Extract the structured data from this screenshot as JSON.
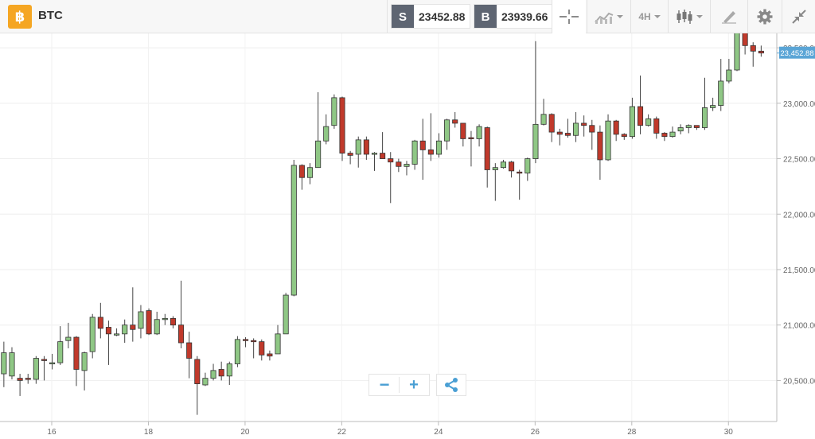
{
  "toolbar": {
    "logo_glyph": "฿",
    "symbol": "BTC",
    "sell": {
      "tag": "S",
      "price": "23452.88"
    },
    "buy": {
      "tag": "B",
      "price": "23939.66"
    },
    "interval": "4H",
    "icons": [
      "crosshair-icon",
      "line-chart-icon",
      "candlestick-icon",
      "drawing-tool-icon",
      "gear-icon",
      "collapse-icon"
    ]
  },
  "controls": {
    "zoom_out": "−",
    "zoom_in": "+",
    "share": "share-icon"
  },
  "chart_data": {
    "type": "candlestick",
    "current_price_label": "23,452.88",
    "current_price": 23452.88,
    "y_ticks": [
      {
        "v": 20500,
        "label": "20,500.00"
      },
      {
        "v": 21000,
        "label": "21,000.00"
      },
      {
        "v": 21500,
        "label": "21,500.00"
      },
      {
        "v": 22000,
        "label": "22,000.00"
      },
      {
        "v": 22500,
        "label": "22,500.00"
      },
      {
        "v": 23000,
        "label": "23,000.00"
      },
      {
        "v": 23500,
        "label": "23,500.00"
      }
    ],
    "x_ticks": [
      {
        "d": 16,
        "label": "16"
      },
      {
        "d": 18,
        "label": "18"
      },
      {
        "d": 20,
        "label": "20"
      },
      {
        "d": 22,
        "label": "22"
      },
      {
        "d": 24,
        "label": "24"
      },
      {
        "d": 26,
        "label": "26"
      },
      {
        "d": 28,
        "label": "28"
      },
      {
        "d": 30,
        "label": "30"
      }
    ],
    "x_range": [
      14.93,
      31.0
    ],
    "y_range": [
      20130,
      23630
    ],
    "candles": [
      [
        20560,
        20750,
        20850,
        20440
      ],
      [
        20540,
        20750,
        20800,
        20510
      ],
      [
        20520,
        20500,
        20560,
        20360
      ],
      [
        20520,
        20510,
        20560,
        20470
      ],
      [
        20510,
        20700,
        20720,
        20470
      ],
      [
        20690,
        20680,
        20720,
        20500
      ],
      [
        20660,
        20660,
        20740,
        20600
      ],
      [
        20660,
        20850,
        20990,
        20640
      ],
      [
        20860,
        20890,
        21020,
        20790
      ],
      [
        20890,
        20600,
        20900,
        20450
      ],
      [
        20590,
        20750,
        20760,
        20410
      ],
      [
        20760,
        21070,
        21100,
        20700
      ],
      [
        21070,
        20970,
        21200,
        20880
      ],
      [
        20980,
        20920,
        21040,
        20640
      ],
      [
        20910,
        20920,
        20970,
        20900
      ],
      [
        20920,
        21000,
        21050,
        20840
      ],
      [
        21000,
        20960,
        21340,
        20850
      ],
      [
        20970,
        21120,
        21180,
        20880
      ],
      [
        21130,
        20920,
        21150,
        20910
      ],
      [
        20920,
        21050,
        21120,
        20910
      ],
      [
        21050,
        21060,
        21100,
        21000
      ],
      [
        21060,
        21000,
        21080,
        20970
      ],
      [
        21000,
        20840,
        21400,
        20790
      ],
      [
        20840,
        20700,
        20940,
        20520
      ],
      [
        20690,
        20470,
        20720,
        20190
      ],
      [
        20460,
        20520,
        20570,
        20450
      ],
      [
        20520,
        20590,
        20650,
        20500
      ],
      [
        20600,
        20540,
        20670,
        20500
      ],
      [
        20540,
        20650,
        20670,
        20460
      ],
      [
        20650,
        20870,
        20900,
        20620
      ],
      [
        20870,
        20860,
        20890,
        20800
      ],
      [
        20860,
        20850,
        20880,
        20700
      ],
      [
        20850,
        20730,
        20870,
        20680
      ],
      [
        20740,
        20720,
        20770,
        20680
      ],
      [
        20740,
        20920,
        21000,
        20740
      ],
      [
        20920,
        21270,
        21290,
        20920
      ],
      [
        21270,
        22440,
        22490,
        21260
      ],
      [
        22440,
        22330,
        22450,
        22220
      ],
      [
        22330,
        22420,
        22460,
        22270
      ],
      [
        22420,
        22660,
        23100,
        22420
      ],
      [
        22660,
        22790,
        22900,
        22630
      ],
      [
        22800,
        23050,
        23080,
        22770
      ],
      [
        23050,
        22550,
        23060,
        22480
      ],
      [
        22550,
        22530,
        22570,
        22450
      ],
      [
        22540,
        22670,
        22700,
        22420
      ],
      [
        22670,
        22540,
        22700,
        22490
      ],
      [
        22540,
        22550,
        22560,
        22390
      ],
      [
        22550,
        22500,
        22740,
        22500
      ],
      [
        22500,
        22470,
        22560,
        22100
      ],
      [
        22470,
        22430,
        22500,
        22380
      ],
      [
        22430,
        22450,
        22480,
        22350
      ],
      [
        22450,
        22660,
        22670,
        22400
      ],
      [
        22660,
        22580,
        22860,
        22310
      ],
      [
        22580,
        22540,
        22910,
        22480
      ],
      [
        22540,
        22660,
        22730,
        22510
      ],
      [
        22660,
        22850,
        22860,
        22580
      ],
      [
        22850,
        22820,
        22920,
        22780
      ],
      [
        22820,
        22680,
        22810,
        22610
      ],
      [
        22690,
        22680,
        22750,
        22430
      ],
      [
        22680,
        22790,
        22810,
        22610
      ],
      [
        22780,
        22400,
        22790,
        22240
      ],
      [
        22400,
        22420,
        22460,
        22120
      ],
      [
        22420,
        22470,
        22490,
        22410
      ],
      [
        22470,
        22390,
        22480,
        22330
      ],
      [
        22380,
        22370,
        22400,
        22130
      ],
      [
        22370,
        22500,
        22510,
        22300
      ],
      [
        22500,
        22810,
        23560,
        22460
      ],
      [
        22810,
        22900,
        23040,
        22800
      ],
      [
        22900,
        22740,
        22910,
        22650
      ],
      [
        22740,
        22720,
        22770,
        22620
      ],
      [
        22730,
        22710,
        22860,
        22690
      ],
      [
        22710,
        22820,
        22920,
        22650
      ],
      [
        22820,
        22800,
        22890,
        22700
      ],
      [
        22800,
        22740,
        22850,
        22580
      ],
      [
        22740,
        22490,
        22800,
        22310
      ],
      [
        22490,
        22840,
        22900,
        22480
      ],
      [
        22840,
        22720,
        22850,
        22660
      ],
      [
        22720,
        22700,
        22730,
        22670
      ],
      [
        22700,
        22970,
        23050,
        22680
      ],
      [
        22970,
        22800,
        23250,
        22720
      ],
      [
        22800,
        22860,
        22900,
        22790
      ],
      [
        22860,
        22730,
        22880,
        22680
      ],
      [
        22730,
        22700,
        22740,
        22660
      ],
      [
        22700,
        22740,
        22790,
        22690
      ],
      [
        22750,
        22780,
        22810,
        22720
      ],
      [
        22780,
        22800,
        22810,
        22730
      ],
      [
        22800,
        22780,
        22800,
        22760
      ],
      [
        22780,
        22960,
        23230,
        22760
      ],
      [
        22960,
        22980,
        23050,
        22930
      ],
      [
        22980,
        23200,
        23400,
        22930
      ],
      [
        23200,
        23300,
        23400,
        23180
      ],
      [
        23300,
        23670,
        23700,
        23290
      ],
      [
        23670,
        23520,
        23690,
        23440
      ],
      [
        23520,
        23470,
        23550,
        23330
      ],
      [
        23470,
        23452.88,
        23520,
        23420
      ]
    ]
  }
}
